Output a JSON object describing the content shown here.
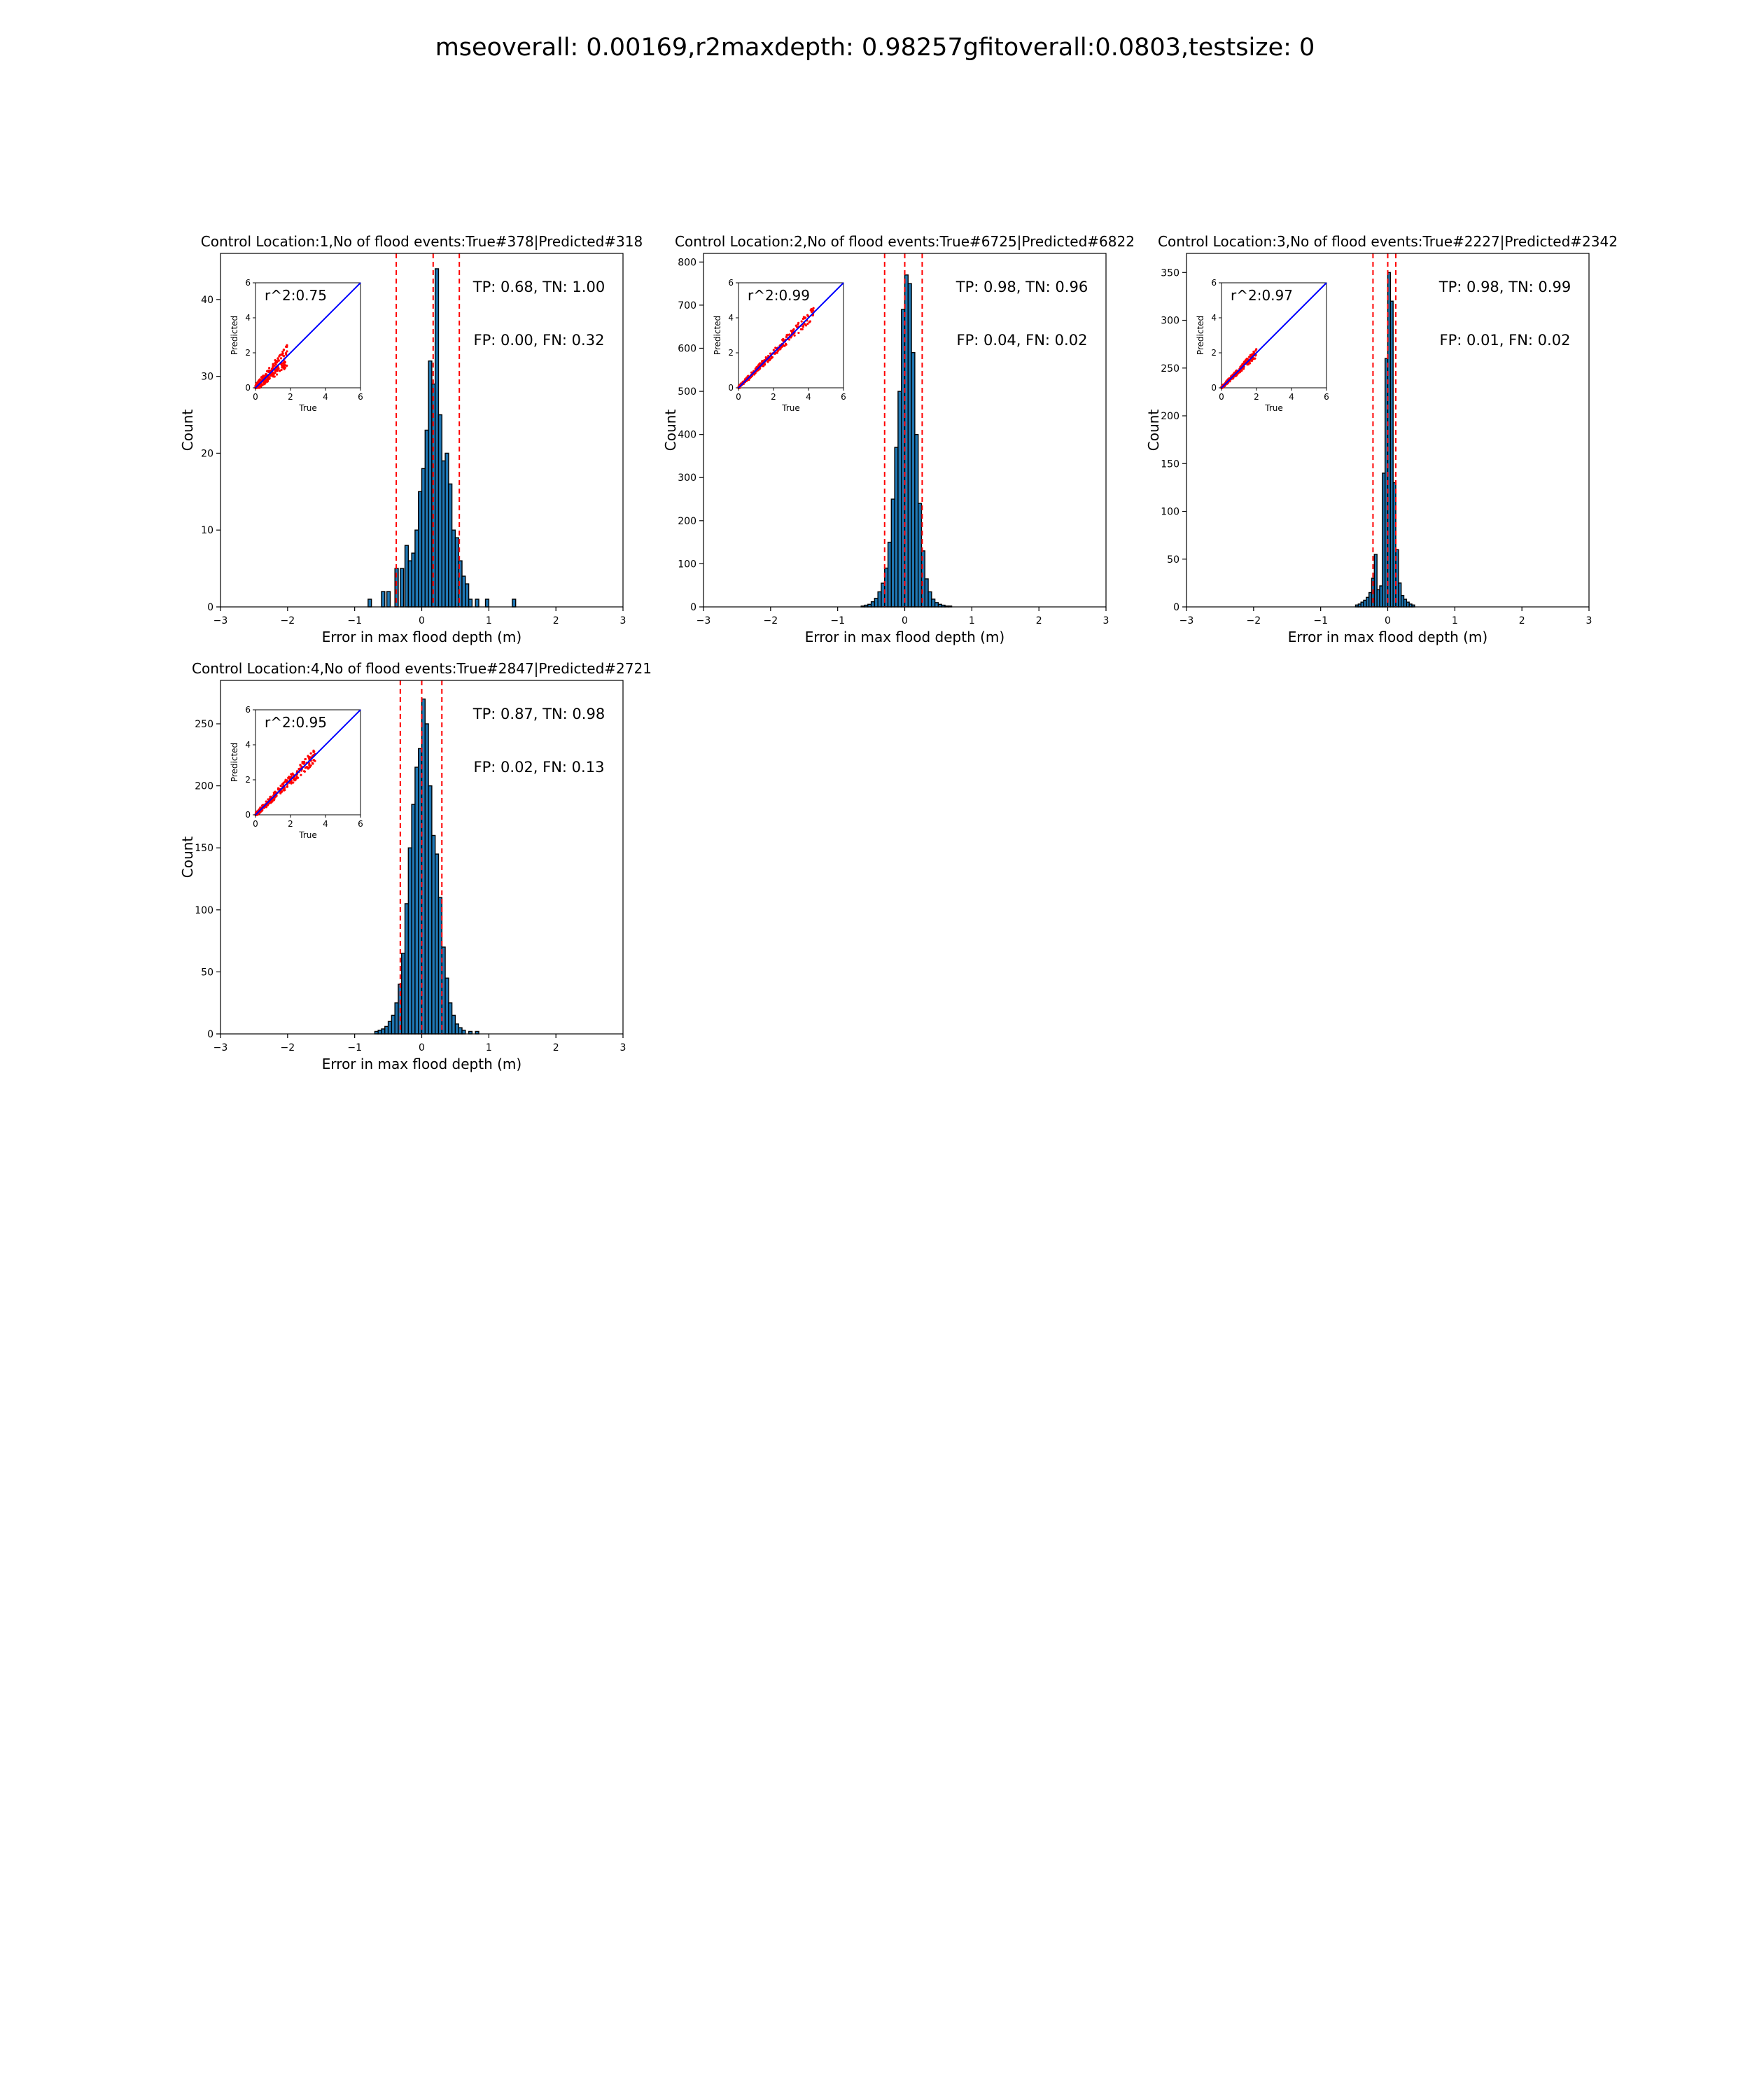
{
  "figure": {
    "suptitle": "mseoverall: 0.00169,r2maxdepth: 0.98257gfitoverall:0.0803,testsize: 0"
  },
  "colors": {
    "bar": "#1f77b4",
    "bar_edge": "#000000",
    "vline": "#ff0000",
    "scatter": "#ff0000",
    "fit_line": "#0000ff"
  },
  "chart_data": [
    {
      "type": "bar",
      "title": "Control Location:1,No of flood events:True#378|Predicted#318",
      "xlabel": "Error in max flood depth (m)",
      "ylabel": "Count",
      "xlim": [
        -3,
        3
      ],
      "ylim": [
        0,
        46
      ],
      "xticks": [
        -3,
        -2,
        -1,
        0,
        1,
        2,
        3
      ],
      "yticks": [
        0,
        10,
        20,
        30,
        40
      ],
      "xtick_labels": [
        "−3",
        "−2",
        "−1",
        "0",
        "1",
        "2",
        "3"
      ],
      "yticklabels": [
        "0",
        "10",
        "20",
        "30",
        "40"
      ],
      "vlines": [
        -0.38,
        0.17,
        0.56
      ],
      "bins": [
        [
          -0.8,
          1
        ],
        [
          -0.6,
          2
        ],
        [
          -0.52,
          2
        ],
        [
          -0.4,
          5
        ],
        [
          -0.32,
          5
        ],
        [
          -0.25,
          8
        ],
        [
          -0.2,
          6
        ],
        [
          -0.15,
          7
        ],
        [
          -0.1,
          10
        ],
        [
          -0.05,
          15
        ],
        [
          0.0,
          18
        ],
        [
          0.05,
          23
        ],
        [
          0.1,
          32
        ],
        [
          0.15,
          29
        ],
        [
          0.2,
          44
        ],
        [
          0.25,
          25
        ],
        [
          0.3,
          19
        ],
        [
          0.35,
          20
        ],
        [
          0.4,
          16
        ],
        [
          0.45,
          10
        ],
        [
          0.5,
          9
        ],
        [
          0.55,
          6
        ],
        [
          0.6,
          4
        ],
        [
          0.65,
          3
        ],
        [
          0.7,
          1
        ],
        [
          0.8,
          1
        ],
        [
          0.95,
          1
        ],
        [
          1.35,
          1
        ]
      ],
      "bin_width": 0.05,
      "annotations": {
        "tp_tn": "TP: 0.68, TN: 1.00",
        "fp_fn": "FP: 0.00, FN: 0.32"
      },
      "inset": {
        "label": "r^2:0.75",
        "xlabel": "True",
        "ylabel": "Predicted",
        "xlim": [
          0,
          6
        ],
        "ylim": [
          0,
          6
        ],
        "ticks": [
          0,
          2,
          4,
          6
        ],
        "tick_labels": [
          "0",
          "2",
          "4",
          "6"
        ],
        "scatter_spread": 0.45,
        "scatter_max": 1.8
      }
    },
    {
      "type": "bar",
      "title": "Control Location:2,No of flood events:True#6725|Predicted#6822",
      "xlabel": "Error in max flood depth (m)",
      "ylabel": "Count",
      "xlim": [
        -3,
        3
      ],
      "ylim": [
        0,
        820
      ],
      "xticks": [
        -3,
        -2,
        -1,
        0,
        1,
        2,
        3
      ],
      "yticks": [
        0,
        100,
        200,
        300,
        400,
        500,
        600,
        700,
        800
      ],
      "xtick_labels": [
        "−3",
        "−2",
        "−1",
        "0",
        "1",
        "2",
        "3"
      ],
      "yticklabels": [
        "0",
        "100",
        "200",
        "300",
        "400",
        "500",
        "600",
        "700",
        "800"
      ],
      "vlines": [
        -0.3,
        0.0,
        0.26
      ],
      "bins": [
        [
          -0.65,
          2
        ],
        [
          -0.6,
          4
        ],
        [
          -0.55,
          6
        ],
        [
          -0.5,
          12
        ],
        [
          -0.45,
          20
        ],
        [
          -0.4,
          35
        ],
        [
          -0.35,
          55
        ],
        [
          -0.3,
          90
        ],
        [
          -0.25,
          150
        ],
        [
          -0.2,
          250
        ],
        [
          -0.15,
          370
        ],
        [
          -0.1,
          500
        ],
        [
          -0.05,
          690
        ],
        [
          0.0,
          770
        ],
        [
          0.05,
          750
        ],
        [
          0.1,
          590
        ],
        [
          0.15,
          400
        ],
        [
          0.2,
          240
        ],
        [
          0.25,
          130
        ],
        [
          0.3,
          65
        ],
        [
          0.35,
          35
        ],
        [
          0.4,
          18
        ],
        [
          0.45,
          10
        ],
        [
          0.5,
          6
        ],
        [
          0.55,
          4
        ],
        [
          0.6,
          2
        ],
        [
          0.65,
          2
        ]
      ],
      "bin_width": 0.05,
      "annotations": {
        "tp_tn": "TP: 0.98, TN: 0.96",
        "fp_fn": "FP: 0.04, FN: 0.02"
      },
      "inset": {
        "label": "r^2:0.99",
        "xlabel": "True",
        "ylabel": "Predicted",
        "xlim": [
          0,
          6
        ],
        "ylim": [
          0,
          6
        ],
        "ticks": [
          0,
          2,
          4,
          6
        ],
        "tick_labels": [
          "0",
          "2",
          "4",
          "6"
        ],
        "scatter_spread": 0.25,
        "scatter_max": 4.3
      }
    },
    {
      "type": "bar",
      "title": "Control Location:3,No of flood events:True#2227|Predicted#2342",
      "xlabel": "Error in max flood depth (m)",
      "ylabel": "Count",
      "xlim": [
        -3,
        3
      ],
      "ylim": [
        0,
        370
      ],
      "xticks": [
        -3,
        -2,
        -1,
        0,
        1,
        2,
        3
      ],
      "yticks": [
        0,
        50,
        100,
        150,
        200,
        250,
        300,
        350
      ],
      "xtick_labels": [
        "−3",
        "−2",
        "−1",
        "0",
        "1",
        "2",
        "3"
      ],
      "yticklabels": [
        "0",
        "50",
        "100",
        "150",
        "200",
        "250",
        "300",
        "350"
      ],
      "vlines": [
        -0.22,
        0.0,
        0.12
      ],
      "bins": [
        [
          -0.48,
          2
        ],
        [
          -0.44,
          3
        ],
        [
          -0.4,
          5
        ],
        [
          -0.36,
          7
        ],
        [
          -0.32,
          10
        ],
        [
          -0.28,
          15
        ],
        [
          -0.24,
          30
        ],
        [
          -0.2,
          55
        ],
        [
          -0.16,
          18
        ],
        [
          -0.12,
          22
        ],
        [
          -0.08,
          140
        ],
        [
          -0.04,
          260
        ],
        [
          0.0,
          350
        ],
        [
          0.04,
          320
        ],
        [
          0.08,
          130
        ],
        [
          0.12,
          60
        ],
        [
          0.16,
          25
        ],
        [
          0.2,
          12
        ],
        [
          0.24,
          8
        ],
        [
          0.28,
          5
        ],
        [
          0.32,
          3
        ],
        [
          0.36,
          2
        ]
      ],
      "bin_width": 0.04,
      "annotations": {
        "tp_tn": "TP: 0.98, TN: 0.99",
        "fp_fn": "FP: 0.01, FN: 0.02"
      },
      "inset": {
        "label": "r^2:0.97",
        "xlabel": "True",
        "ylabel": "Predicted",
        "xlim": [
          0,
          6
        ],
        "ylim": [
          0,
          6
        ],
        "ticks": [
          0,
          2,
          4,
          6
        ],
        "tick_labels": [
          "0",
          "2",
          "4",
          "6"
        ],
        "scatter_spread": 0.18,
        "scatter_max": 2.0
      }
    },
    {
      "type": "bar",
      "title": "Control Location:4,No of flood events:True#2847|Predicted#2721",
      "xlabel": "Error in max flood depth (m)",
      "ylabel": "Count",
      "xlim": [
        -3,
        3
      ],
      "ylim": [
        0,
        285
      ],
      "xticks": [
        -3,
        -2,
        -1,
        0,
        1,
        2,
        3
      ],
      "yticks": [
        0,
        50,
        100,
        150,
        200,
        250
      ],
      "xtick_labels": [
        "−3",
        "−2",
        "−1",
        "0",
        "1",
        "2",
        "3"
      ],
      "yticklabels": [
        "0",
        "50",
        "100",
        "150",
        "200",
        "250"
      ],
      "vlines": [
        -0.32,
        0.0,
        0.3
      ],
      "bins": [
        [
          -0.7,
          2
        ],
        [
          -0.65,
          3
        ],
        [
          -0.6,
          4
        ],
        [
          -0.55,
          6
        ],
        [
          -0.5,
          10
        ],
        [
          -0.45,
          15
        ],
        [
          -0.4,
          25
        ],
        [
          -0.35,
          40
        ],
        [
          -0.3,
          65
        ],
        [
          -0.25,
          105
        ],
        [
          -0.2,
          150
        ],
        [
          -0.15,
          185
        ],
        [
          -0.1,
          215
        ],
        [
          -0.05,
          230
        ],
        [
          0.0,
          270
        ],
        [
          0.05,
          250
        ],
        [
          0.1,
          200
        ],
        [
          0.15,
          160
        ],
        [
          0.2,
          145
        ],
        [
          0.25,
          110
        ],
        [
          0.3,
          70
        ],
        [
          0.35,
          45
        ],
        [
          0.4,
          25
        ],
        [
          0.45,
          15
        ],
        [
          0.5,
          8
        ],
        [
          0.55,
          5
        ],
        [
          0.6,
          3
        ],
        [
          0.7,
          2
        ],
        [
          0.8,
          2
        ]
      ],
      "bin_width": 0.05,
      "annotations": {
        "tp_tn": "TP: 0.87, TN: 0.98",
        "fp_fn": "FP: 0.02, FN: 0.13"
      },
      "inset": {
        "label": "r^2:0.95",
        "xlabel": "True",
        "ylabel": "Predicted",
        "xlim": [
          0,
          6
        ],
        "ylim": [
          0,
          6
        ],
        "ticks": [
          0,
          2,
          4,
          6
        ],
        "tick_labels": [
          "0",
          "2",
          "4",
          "6"
        ],
        "scatter_spread": 0.3,
        "scatter_max": 3.4
      }
    }
  ]
}
